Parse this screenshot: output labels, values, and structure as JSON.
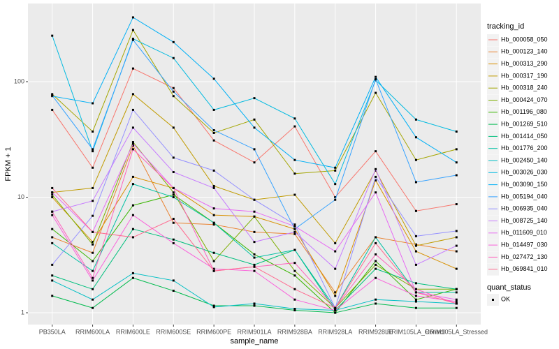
{
  "chart_data": {
    "type": "line",
    "x_label": "sample_name",
    "y_label": "FPKM + 1",
    "categories": [
      "PB350LA",
      "RRIM600LA",
      "RRIM600LE",
      "RRIM600SE",
      "RRIM600PE",
      "RRIM901LA",
      "RRIM928BA",
      "RRIM928LA",
      "RRIM928LE",
      "RRIM105LA_Control",
      "RRIM105LA_Stressed"
    ],
    "log_y": true,
    "ylim": [
      0.79,
      475
    ],
    "yticks": [
      1,
      10,
      100
    ],
    "grid": true,
    "legend_title": "tracking_id",
    "legend_position": "right",
    "point_legend_title": "quant_status",
    "point_legend_label": "OK",
    "point_color": "#000000",
    "series": [
      {
        "name": "Hb_000058_050",
        "color": "#F8766D",
        "values": [
          57,
          18,
          130,
          88,
          31,
          20,
          41,
          10,
          25,
          7.6,
          8.7
        ]
      },
      {
        "name": "Hb_000123_140",
        "color": "#EA8331",
        "values": [
          4.5,
          3.3,
          28,
          6,
          5.8,
          5,
          4.8,
          1.5,
          4.5,
          3.9,
          3.4
        ]
      },
      {
        "name": "Hb_000313_290",
        "color": "#D89000",
        "values": [
          10,
          4.1,
          15,
          12,
          7,
          6.8,
          5.3,
          1.4,
          14,
          3.4,
          2.4
        ]
      },
      {
        "name": "Hb_000317_190",
        "color": "#C09B00",
        "values": [
          11,
          12,
          78,
          40,
          12.5,
          9.5,
          10.5,
          4,
          17,
          3.8,
          4.5
        ]
      },
      {
        "name": "Hb_000318_240",
        "color": "#A3A500",
        "values": [
          78,
          37,
          280,
          75,
          36,
          47,
          16,
          17,
          80,
          21,
          26
        ]
      },
      {
        "name": "Hb_000424_070",
        "color": "#7CAE00",
        "values": [
          10.5,
          3.9,
          30,
          11,
          2.8,
          6.8,
          2.3,
          1.1,
          2.6,
          1.6,
          1.6
        ]
      },
      {
        "name": "Hb_001196_080",
        "color": "#39B600",
        "values": [
          5.3,
          2.8,
          8.5,
          10.5,
          6,
          3.2,
          2.1,
          1.0,
          2.8,
          1.3,
          1.6
        ]
      },
      {
        "name": "Hb_001269_510",
        "color": "#00BB4E",
        "values": [
          1.4,
          1.1,
          2.0,
          1.55,
          1.15,
          1.15,
          1.05,
          1.0,
          1.2,
          1.1,
          1.1
        ]
      },
      {
        "name": "Hb_001414_050",
        "color": "#00BF7D",
        "values": [
          2.1,
          1.6,
          5.3,
          4.3,
          3.3,
          2.6,
          3.5,
          1.05,
          2.4,
          1.8,
          1.6
        ]
      },
      {
        "name": "Hb_001776_200",
        "color": "#00C1A3",
        "values": [
          4,
          2.3,
          13,
          10,
          6,
          3,
          3.5,
          1.1,
          4.5,
          1.5,
          1.5
        ]
      },
      {
        "name": "Hb_002450_140",
        "color": "#00BFC4",
        "values": [
          1.9,
          1.3,
          2.2,
          1.9,
          1.12,
          1.2,
          1.08,
          1.05,
          1.3,
          1.25,
          1.2
        ]
      },
      {
        "name": "Hb_003026_030",
        "color": "#00BAE0",
        "values": [
          250,
          25,
          235,
          160,
          57,
          72,
          48,
          13,
          103,
          47,
          37
        ]
      },
      {
        "name": "Hb_003090_150",
        "color": "#00B0F6",
        "values": [
          75,
          65,
          360,
          220,
          106,
          40,
          21,
          18,
          110,
          33,
          20
        ]
      },
      {
        "name": "Hb_005194_040",
        "color": "#35A2FF",
        "values": [
          76,
          26,
          230,
          82,
          38,
          26,
          5.3,
          9.5,
          105,
          13.5,
          15.5
        ]
      },
      {
        "name": "Hb_006935_040",
        "color": "#9590FF",
        "values": [
          2.6,
          6.9,
          57,
          22,
          17,
          9.5,
          5.8,
          1.1,
          15,
          4.6,
          5.1
        ]
      },
      {
        "name": "Hb_008725_140",
        "color": "#C77CFF",
        "values": [
          7.5,
          9.3,
          40,
          16.5,
          12,
          4.1,
          5,
          2.4,
          17.5,
          2.6,
          3.8
        ]
      },
      {
        "name": "Hb_011609_010",
        "color": "#E76BF3",
        "values": [
          11,
          5,
          29,
          12,
          8,
          7.5,
          5.6,
          3.4,
          11,
          1.5,
          1.3
        ]
      },
      {
        "name": "Hb_014497_030",
        "color": "#FA62DB",
        "values": [
          7,
          1.9,
          7,
          4,
          2.4,
          2.3,
          1.3,
          1.05,
          2,
          1.4,
          1.25
        ]
      },
      {
        "name": "Hb_027472_130",
        "color": "#FF62BC",
        "values": [
          7.5,
          2,
          26,
          12,
          2.3,
          2.5,
          2.7,
          1.1,
          3.2,
          1.6,
          1.2
        ]
      },
      {
        "name": "Hb_069841_010",
        "color": "#FF6C91",
        "values": [
          12,
          5,
          4.5,
          6.5,
          2.3,
          2.5,
          1.6,
          1.1,
          4,
          1.5,
          1.2
        ]
      }
    ]
  }
}
